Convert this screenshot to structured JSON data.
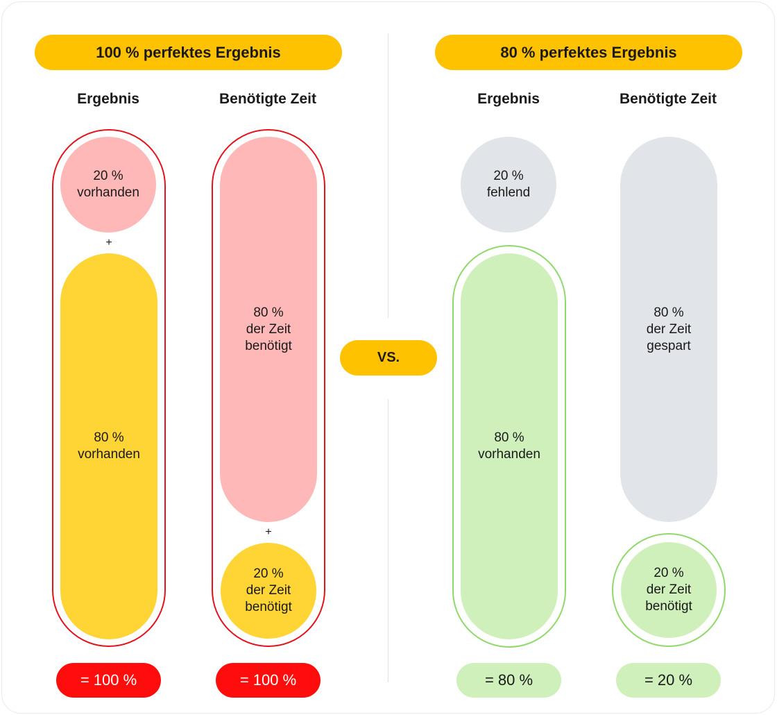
{
  "left": {
    "header": "100 % perfektes Ergebnis",
    "col_result_title": "Ergebnis",
    "col_time_title": "Benötigte Zeit",
    "result_top": {
      "l1": "20 %",
      "l2": "vorhanden"
    },
    "result_bottom": {
      "l1": "80 %",
      "l2": "vorhanden"
    },
    "time_top": {
      "l1": "80 %",
      "l2": "der Zeit",
      "l3": "benötigt"
    },
    "time_bottom": {
      "l1": "20 %",
      "l2": "der Zeit",
      "l3": "benötigt"
    },
    "plus": "+",
    "sum_result": "= 100 %",
    "sum_time": "= 100 %"
  },
  "vs_label": "VS.",
  "right": {
    "header": "80 % perfektes Ergebnis",
    "col_result_title": "Ergebnis",
    "col_time_title": "Benötigte Zeit",
    "result_top": {
      "l1": "20 %",
      "l2": "fehlend"
    },
    "result_bottom": {
      "l1": "80 %",
      "l2": "vorhanden"
    },
    "time_top": {
      "l1": "80 %",
      "l2": "der Zeit",
      "l3": "gespart"
    },
    "time_bottom": {
      "l1": "20 %",
      "l2": "der Zeit",
      "l3": "benötigt"
    },
    "sum_result": "= 80 %",
    "sum_time": "= 20 %"
  },
  "colors": {
    "header_yellow": "#ffc200",
    "pink": "#ffb8b8",
    "yellow": "#ffd435",
    "grey": "#e1e4e8",
    "light_green": "#cff0ba",
    "red_outline": "#e3121b",
    "green_outline": "#8fd96b",
    "result_red": "#ff0d0d"
  }
}
